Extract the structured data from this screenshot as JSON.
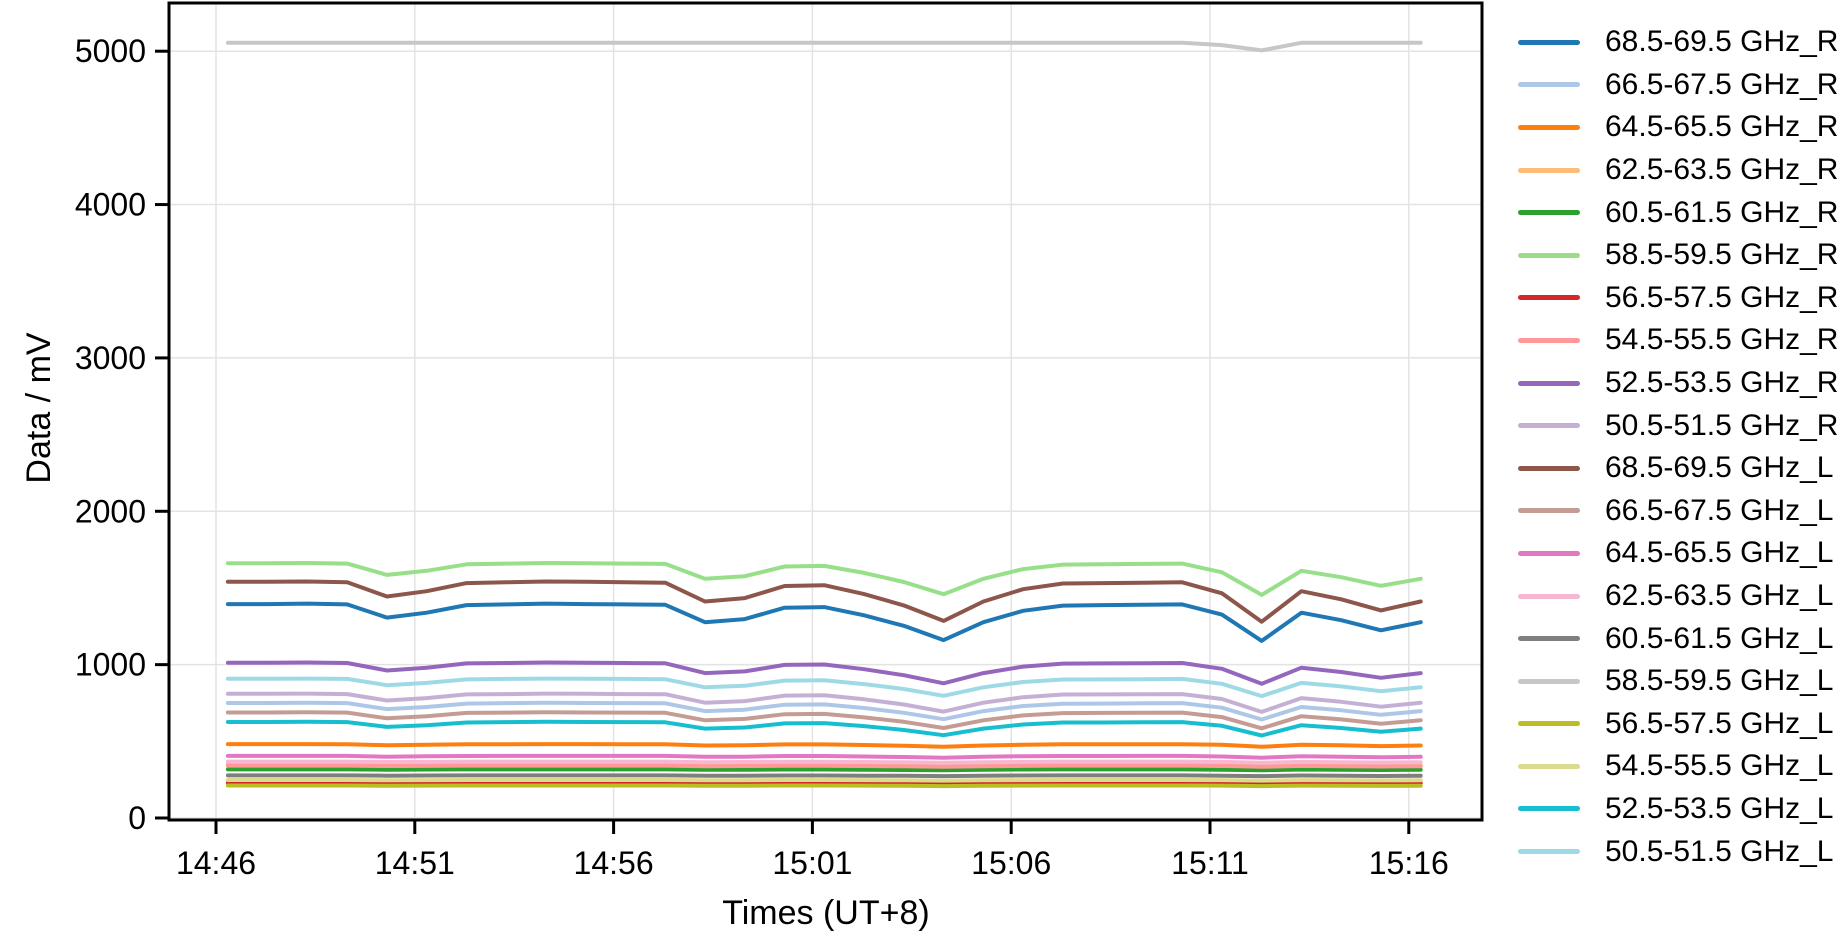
{
  "figure": {
    "background": "#ffffff"
  },
  "chart_data": {
    "type": "line",
    "title": "",
    "xlabel": "Times (UT+8)",
    "ylabel": "Data / mV",
    "x_tick_labels": [
      "14:46",
      "14:51",
      "14:56",
      "15:01",
      "15:06",
      "15:11",
      "15:16"
    ],
    "x_tick_interval_min": 5,
    "y_ticks": [
      0,
      1000,
      2000,
      3000,
      4000,
      5000
    ],
    "y_tick_labels": [
      "0",
      "1000",
      "2000",
      "3000",
      "4000",
      "5000"
    ],
    "ylim": [
      -40,
      5320
    ],
    "grid": true,
    "legend_position": "right",
    "x_unit": "minutes after 14:46 (UT+8)",
    "y_unit": "mV",
    "x_minutes": [
      0.3,
      1.3,
      2.3,
      3.3,
      4.3,
      5.3,
      6.3,
      7.3,
      8.3,
      9.3,
      10.3,
      11.3,
      12.3,
      13.3,
      14.3,
      15.3,
      16.3,
      17.3,
      18.3,
      19.3,
      20.3,
      21.3,
      22.3,
      23.3,
      24.3,
      25.3,
      26.3,
      27.3,
      28.3,
      29.3,
      30.3
    ],
    "style": {
      "grid_color": "#e3e3e3",
      "spine_color": "#000000",
      "text_color": "#000000",
      "background": "#ffffff"
    },
    "series": [
      {
        "label": "68.5-69.5 GHz_R",
        "color": "#1f77b4",
        "values": [
          1395,
          1395,
          1398,
          1393,
          1307,
          1339,
          1388,
          1393,
          1398,
          1395,
          1393,
          1390,
          1277,
          1297,
          1371,
          1375,
          1322,
          1253,
          1160,
          1277,
          1351,
          1385,
          1388,
          1390,
          1393,
          1326,
          1155,
          1339,
          1290,
          1224,
          1277
        ]
      },
      {
        "label": "66.5-67.5 GHz_R",
        "color": "#aec7e8",
        "values": [
          750,
          750,
          751,
          749,
          710,
          724,
          746,
          749,
          751,
          750,
          749,
          748,
          697,
          706,
          739,
          741,
          717,
          686,
          644,
          697,
          730,
          745,
          746,
          748,
          749,
          719,
          642,
          724,
          702,
          673,
          697
        ]
      },
      {
        "label": "64.5-65.5 GHz_R",
        "color": "#ff7f0e",
        "values": [
          482,
          482,
          482,
          481,
          475,
          477,
          481,
          481,
          482,
          482,
          481,
          481,
          473,
          474,
          480,
          480,
          476,
          471,
          464,
          473,
          478,
          481,
          481,
          481,
          481,
          477,
          464,
          477,
          474,
          469,
          473
        ]
      },
      {
        "label": "62.5-63.5 GHz_R",
        "color": "#ffbb78",
        "values": [
          348,
          348,
          348,
          348,
          345,
          346,
          348,
          348,
          348,
          348,
          348,
          348,
          344,
          345,
          347,
          347,
          346,
          344,
          341,
          344,
          347,
          348,
          348,
          348,
          348,
          346,
          341,
          346,
          345,
          343,
          344
        ]
      },
      {
        "label": "60.5-61.5 GHz_R",
        "color": "#2ca02c",
        "values": [
          317,
          317,
          317,
          317,
          315,
          316,
          317,
          317,
          317,
          317,
          317,
          317,
          314,
          314,
          316,
          316,
          315,
          313,
          311,
          314,
          316,
          317,
          317,
          317,
          317,
          315,
          311,
          316,
          314,
          313,
          314
        ]
      },
      {
        "label": "58.5-59.5 GHz_R",
        "color": "#98df8a",
        "values": [
          1661,
          1661,
          1663,
          1659,
          1585,
          1612,
          1654,
          1659,
          1663,
          1661,
          1659,
          1657,
          1560,
          1577,
          1640,
          1644,
          1598,
          1539,
          1459,
          1560,
          1623,
          1652,
          1654,
          1657,
          1659,
          1602,
          1455,
          1612,
          1570,
          1514,
          1560
        ]
      },
      {
        "label": "56.5-57.5 GHz_R",
        "color": "#d62728",
        "values": [
          230,
          230,
          230,
          230,
          228,
          229,
          230,
          230,
          230,
          230,
          230,
          230,
          228,
          228,
          230,
          230,
          229,
          228,
          226,
          228,
          229,
          230,
          230,
          230,
          230,
          229,
          226,
          229,
          228,
          227,
          228
        ]
      },
      {
        "label": "54.5-55.5 GHz_R",
        "color": "#ff9896",
        "values": [
          342,
          342,
          342,
          342,
          339,
          340,
          342,
          342,
          342,
          342,
          342,
          342,
          338,
          339,
          341,
          341,
          339,
          337,
          334,
          338,
          340,
          342,
          342,
          342,
          342,
          340,
          334,
          340,
          338,
          336,
          338
        ]
      },
      {
        "label": "52.5-53.5 GHz_R",
        "color": "#9467bd",
        "values": [
          1012,
          1012,
          1014,
          1011,
          962,
          980,
          1008,
          1011,
          1014,
          1012,
          1011,
          1009,
          945,
          956,
          998,
          1001,
          970,
          931,
          878,
          945,
          987,
          1007,
          1008,
          1009,
          1011,
          973,
          875,
          980,
          952,
          914,
          945
        ]
      },
      {
        "label": "50.5-51.5 GHz_R",
        "color": "#c5b0d5",
        "values": [
          810,
          810,
          811,
          808,
          766,
          782,
          806,
          808,
          811,
          810,
          808,
          807,
          752,
          762,
          798,
          800,
          774,
          740,
          694,
          752,
          788,
          805,
          806,
          807,
          808,
          776,
          692,
          782,
          758,
          726,
          752
        ]
      },
      {
        "label": "68.5-69.5 GHz_L",
        "color": "#8c564b",
        "values": [
          1540,
          1540,
          1542,
          1537,
          1444,
          1479,
          1532,
          1537,
          1542,
          1540,
          1537,
          1534,
          1412,
          1434,
          1513,
          1518,
          1460,
          1386,
          1285,
          1412,
          1492,
          1529,
          1532,
          1534,
          1537,
          1465,
          1280,
          1479,
          1426,
          1354,
          1412
        ]
      },
      {
        "label": "66.5-67.5 GHz_L",
        "color": "#c49c94",
        "values": [
          688,
          688,
          689,
          687,
          650,
          664,
          685,
          687,
          689,
          688,
          687,
          686,
          637,
          646,
          677,
          679,
          656,
          627,
          587,
          637,
          669,
          684,
          685,
          686,
          687,
          658,
          585,
          664,
          643,
          614,
          637
        ]
      },
      {
        "label": "64.5-65.5 GHz_L",
        "color": "#e377c2",
        "values": [
          405,
          405,
          405,
          405,
          400,
          402,
          404,
          405,
          405,
          405,
          405,
          405,
          399,
          400,
          404,
          404,
          401,
          398,
          393,
          399,
          403,
          404,
          404,
          405,
          405,
          401,
          393,
          402,
          400,
          396,
          399
        ]
      },
      {
        "label": "62.5-63.5 GHz_L",
        "color": "#f7b6d2",
        "values": [
          368,
          368,
          368,
          368,
          365,
          366,
          368,
          368,
          368,
          368,
          368,
          368,
          364,
          365,
          367,
          367,
          365,
          363,
          360,
          364,
          366,
          368,
          368,
          368,
          368,
          366,
          360,
          366,
          364,
          362,
          364
        ]
      },
      {
        "label": "60.5-61.5 GHz_L",
        "color": "#7f7f7f",
        "values": [
          278,
          278,
          278,
          278,
          276,
          277,
          278,
          278,
          278,
          278,
          278,
          278,
          275,
          276,
          277,
          277,
          276,
          275,
          273,
          275,
          277,
          278,
          278,
          278,
          278,
          276,
          273,
          277,
          276,
          274,
          275
        ]
      },
      {
        "label": "58.5-59.5 GHz_L",
        "color": "#c7c7c7",
        "values": [
          5055,
          5055,
          5055,
          5055,
          5055,
          5055,
          5055,
          5055,
          5055,
          5055,
          5055,
          5055,
          5055,
          5055,
          5055,
          5055,
          5055,
          5055,
          5055,
          5055,
          5055,
          5055,
          5055,
          5055,
          5055,
          5040,
          5005,
          5055,
          5055,
          5055,
          5055
        ]
      },
      {
        "label": "56.5-57.5 GHz_L",
        "color": "#bcbd22",
        "values": [
          212,
          212,
          212,
          212,
          210,
          211,
          212,
          212,
          212,
          212,
          212,
          212,
          210,
          210,
          212,
          212,
          211,
          210,
          208,
          210,
          211,
          212,
          212,
          212,
          212,
          211,
          208,
          211,
          210,
          209,
          210
        ]
      },
      {
        "label": "54.5-55.5 GHz_L",
        "color": "#dbdb8d",
        "values": [
          248,
          248,
          248,
          248,
          246,
          247,
          248,
          248,
          248,
          248,
          248,
          248,
          246,
          246,
          248,
          248,
          247,
          246,
          244,
          246,
          247,
          248,
          248,
          248,
          248,
          247,
          244,
          247,
          246,
          245,
          246
        ]
      },
      {
        "label": "52.5-53.5 GHz_L",
        "color": "#17becf",
        "values": [
          626,
          626,
          627,
          625,
          594,
          605,
          623,
          625,
          627,
          626,
          625,
          624,
          583,
          590,
          617,
          619,
          599,
          574,
          540,
          583,
          610,
          623,
          623,
          624,
          625,
          601,
          538,
          605,
          587,
          563,
          583
        ]
      },
      {
        "label": "50.5-51.5 GHz_L",
        "color": "#9edae5",
        "values": [
          908,
          908,
          909,
          907,
          866,
          881,
          904,
          907,
          909,
          908,
          907,
          905,
          852,
          862,
          896,
          898,
          873,
          841,
          797,
          852,
          887,
          903,
          904,
          905,
          907,
          875,
          795,
          881,
          858,
          827,
          852
        ]
      }
    ]
  }
}
